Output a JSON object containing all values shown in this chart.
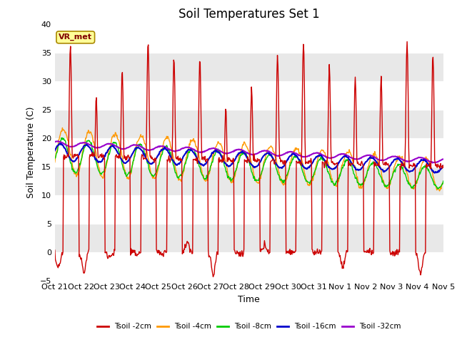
{
  "title": "Soil Temperatures Set 1",
  "xlabel": "Time",
  "ylabel": "Soil Temperature (C)",
  "ylim": [
    -5,
    40
  ],
  "xlim": [
    0,
    15
  ],
  "xtick_labels": [
    "Oct 21",
    "Oct 22",
    "Oct 23",
    "Oct 24",
    "Oct 25",
    "Oct 26",
    "Oct 27",
    "Oct 28",
    "Oct 29",
    "Oct 30",
    "Oct 31",
    "Nov 1",
    "Nov 2",
    "Nov 3",
    "Nov 4",
    "Nov 5"
  ],
  "series_colors": [
    "#cc0000",
    "#ff9900",
    "#00cc00",
    "#0000cc",
    "#9900cc"
  ],
  "series_labels": [
    "Tsoil -2cm",
    "Tsoil -4cm",
    "Tsoil -8cm",
    "Tsoil -16cm",
    "Tsoil -32cm"
  ],
  "background_color": "#ffffff",
  "plot_bg_color": "#ffffff",
  "annotation_text": "VR_met",
  "yticks": [
    -5,
    0,
    5,
    10,
    15,
    20,
    25,
    30,
    35,
    40
  ],
  "band_colors": [
    "#ffffff",
    "#e8e8e8"
  ],
  "title_fontsize": 12,
  "axis_label_fontsize": 9,
  "tick_fontsize": 8
}
